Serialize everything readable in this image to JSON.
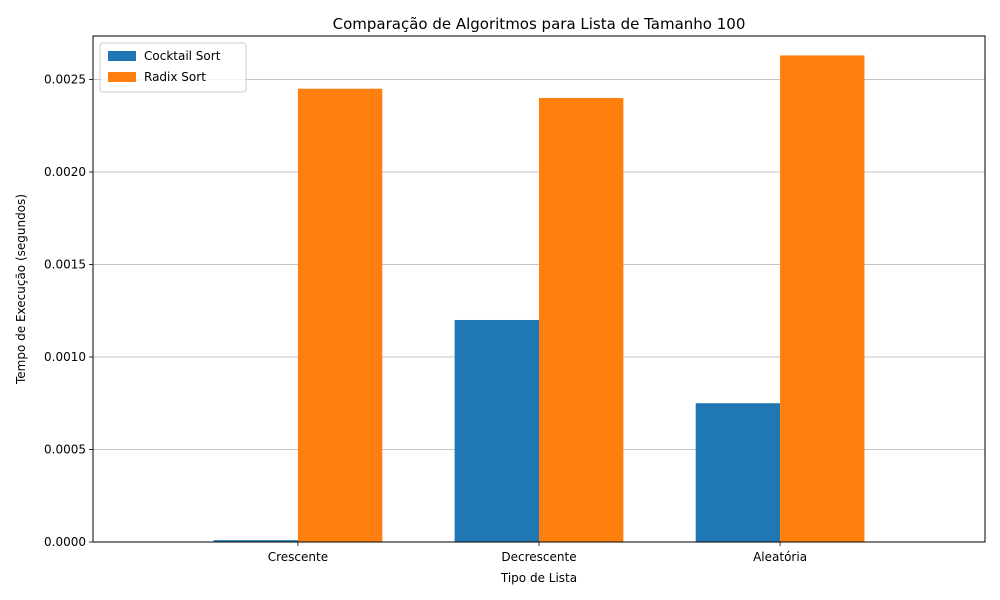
{
  "chart_data": {
    "type": "bar",
    "title": "Comparação de Algoritmos para Lista de Tamanho 100",
    "xlabel": "Tipo de Lista",
    "ylabel": "Tempo de Execução (segundos)",
    "categories": [
      "Crescente",
      "Decrescente",
      "Aleatória"
    ],
    "series": [
      {
        "name": "Cocktail Sort",
        "values": [
          1e-05,
          0.0012,
          0.00075
        ],
        "color": "#1f77b4"
      },
      {
        "name": "Radix Sort",
        "values": [
          0.00245,
          0.0024,
          0.00263
        ],
        "color": "#ff7f0e"
      }
    ],
    "ylim": [
      0,
      0.002735
    ],
    "yticks": [
      0.0,
      0.0005,
      0.001,
      0.0015,
      0.002,
      0.0025
    ],
    "ytick_labels": [
      "0.0000",
      "0.0005",
      "0.0010",
      "0.0015",
      "0.0020",
      "0.0025"
    ],
    "grid": "y",
    "legend_position": "top-left"
  }
}
